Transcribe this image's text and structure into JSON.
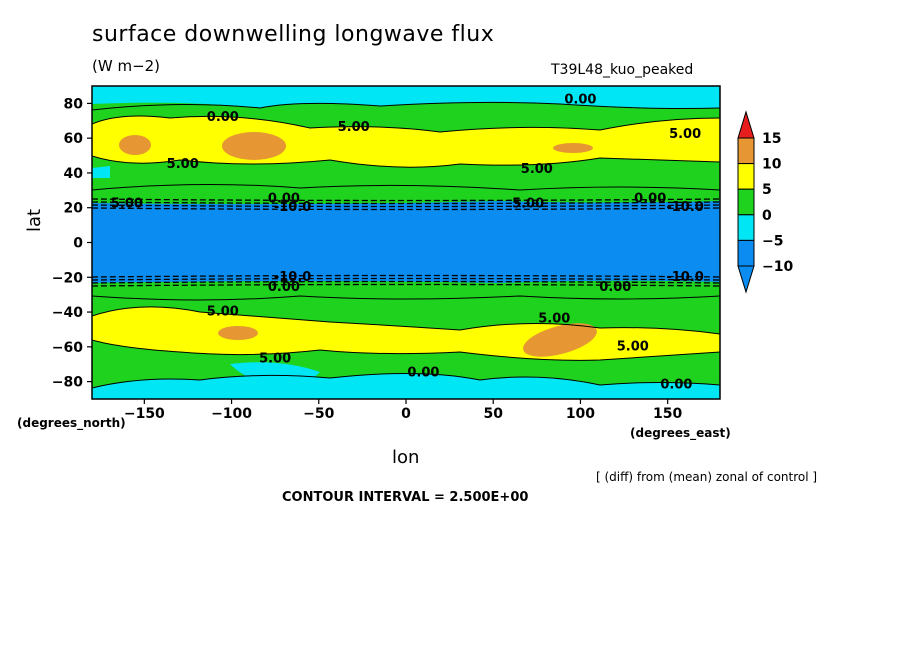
{
  "header": {
    "title": "surface downwelling longwave flux",
    "units": "(W m−2)",
    "run": "T39L48_kuo_peaked"
  },
  "footer": {
    "note": "[ (diff) from (mean) zonal of control ]",
    "interval": "CONTOUR INTERVAL = 2.500E+00"
  },
  "chart_data": {
    "type": "heatmap",
    "subtype": "filled contour map (lat-lon)",
    "xlabel": "lon",
    "ylabel": "lat",
    "x_unit": "(degrees_east)",
    "y_unit": "(degrees_north)",
    "xlim": [
      -180,
      180
    ],
    "ylim": [
      -90,
      90
    ],
    "x_ticks": [
      -150,
      -100,
      -50,
      0,
      50,
      100,
      150
    ],
    "y_ticks": [
      80,
      60,
      40,
      20,
      0,
      -20,
      -40,
      -60,
      -80
    ],
    "x_tick_labels": [
      "−150",
      "−100",
      "−50",
      "0",
      "50",
      "100",
      "150"
    ],
    "y_tick_labels": [
      "80",
      "60",
      "40",
      "20",
      "0",
      "−20",
      "−40",
      "−60",
      "−80"
    ],
    "contour_interval": 2.5,
    "colorbar": {
      "levels": [
        -10,
        -5,
        0,
        5,
        10,
        15
      ],
      "level_labels": [
        "−10",
        "−5",
        "0",
        "5",
        "10",
        "15"
      ],
      "colors": [
        "#0a8cf0",
        "#00e6f5",
        "#1ed21e",
        "#ffff00",
        "#e69632",
        "#e61e1e"
      ],
      "extend": "both"
    },
    "contour_labels": [
      {
        "text": "0.00",
        "lon": 100,
        "lat": 82
      },
      {
        "text": "0.00",
        "lon": -105,
        "lat": 72
      },
      {
        "text": "5.00",
        "lon": -30,
        "lat": 66
      },
      {
        "text": "5.00",
        "lon": 160,
        "lat": 62
      },
      {
        "text": "5.00",
        "lon": -128,
        "lat": 45
      },
      {
        "text": "5.00",
        "lon": 75,
        "lat": 42
      },
      {
        "text": "5.00",
        "lon": -160,
        "lat": 22
      },
      {
        "text": "0.00",
        "lon": -70,
        "lat": 25
      },
      {
        "text": "-10.0",
        "lon": -65,
        "lat": 20
      },
      {
        "text": "5.00",
        "lon": 70,
        "lat": 22
      },
      {
        "text": "0.00",
        "lon": 140,
        "lat": 25
      },
      {
        "text": "-10.0",
        "lon": 160,
        "lat": 20
      },
      {
        "text": "-10.0",
        "lon": -65,
        "lat": -20
      },
      {
        "text": "0.00",
        "lon": -70,
        "lat": -26
      },
      {
        "text": "0.00",
        "lon": 120,
        "lat": -26
      },
      {
        "text": "-10.0",
        "lon": 160,
        "lat": -20
      },
      {
        "text": "5.00",
        "lon": -105,
        "lat": -40
      },
      {
        "text": "5.00",
        "lon": 85,
        "lat": -44
      },
      {
        "text": "5.00",
        "lon": 130,
        "lat": -60
      },
      {
        "text": "5.00",
        "lon": -75,
        "lat": -67
      },
      {
        "text": "0.00",
        "lon": 10,
        "lat": -75
      },
      {
        "text": "0.00",
        "lon": 155,
        "lat": -82
      }
    ]
  }
}
